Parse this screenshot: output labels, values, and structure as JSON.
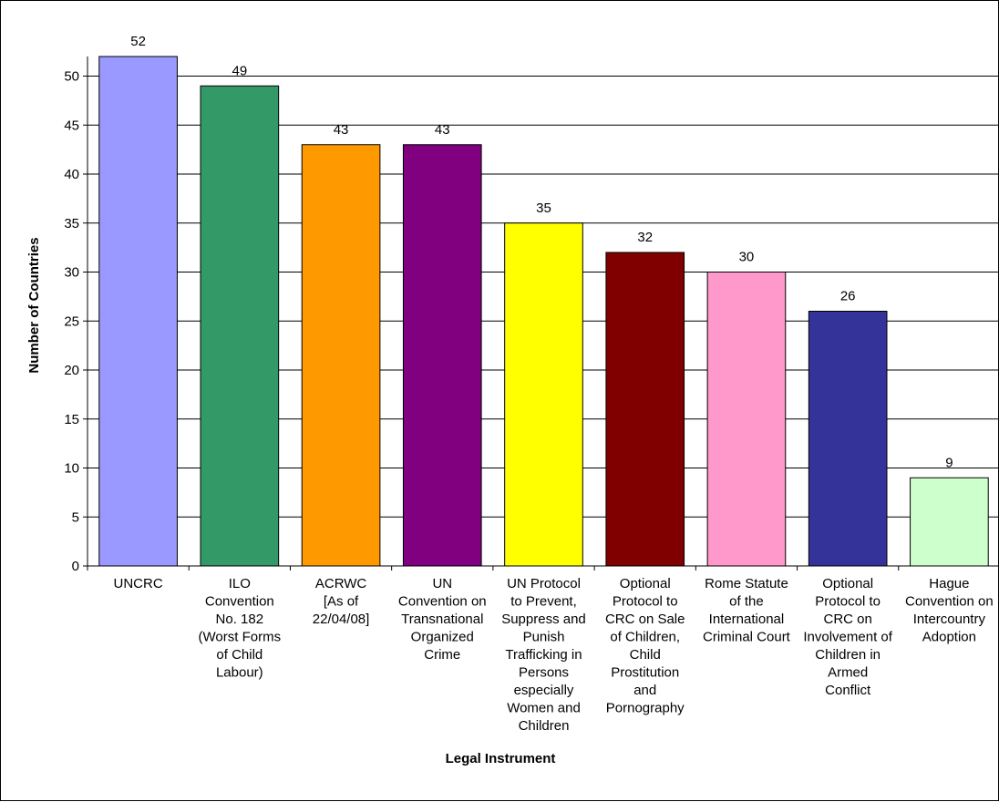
{
  "chart_data": {
    "type": "bar",
    "title": "",
    "xlabel": "Legal Instrument",
    "ylabel": "Number of Countries",
    "ylim": [
      0,
      52
    ],
    "yticks": [
      0,
      5,
      10,
      15,
      20,
      25,
      30,
      35,
      40,
      45,
      50
    ],
    "grid": true,
    "legend": "none",
    "categories": [
      [
        "UNCRC"
      ],
      [
        "ILO",
        "Convention",
        "No. 182",
        "(Worst Forms",
        "of Child",
        "Labour)"
      ],
      [
        "ACRWC",
        "[As of",
        "22/04/08]"
      ],
      [
        "UN",
        "Convention on",
        "Transnational",
        "Organized",
        "Crime"
      ],
      [
        "UN Protocol",
        "to Prevent,",
        "Suppress and",
        "Punish",
        "Trafficking in",
        "Persons",
        "especially",
        "Women and",
        "Children"
      ],
      [
        "Optional",
        "Protocol to",
        "CRC on Sale",
        "of Children,",
        "Child",
        "Prostitution",
        "and",
        "Pornography"
      ],
      [
        "Rome Statute",
        "of the",
        "International",
        "Criminal Court"
      ],
      [
        "Optional",
        "Protocol to",
        "CRC on",
        "Involvement of",
        "Children in",
        "Armed",
        "Conflict"
      ],
      [
        "Hague",
        "Convention on",
        "Intercountry",
        "Adoption"
      ]
    ],
    "values": [
      52,
      49,
      43,
      43,
      35,
      32,
      30,
      26,
      9
    ],
    "colors": [
      "#9999ff",
      "#339966",
      "#ff9900",
      "#800080",
      "#ffff00",
      "#800000",
      "#ff99cc",
      "#333399",
      "#ccffcc"
    ]
  }
}
